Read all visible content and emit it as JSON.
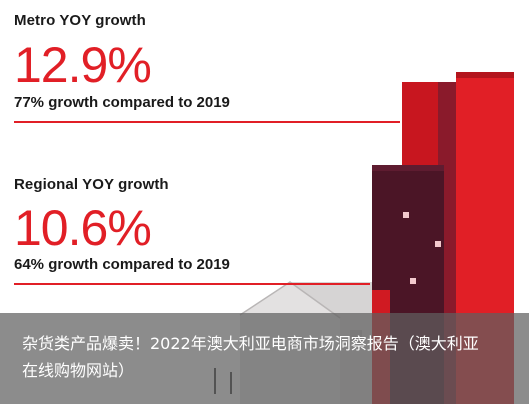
{
  "metro": {
    "label": "Metro YOY growth",
    "value": "12.9%",
    "description": "77% growth compared to 2019"
  },
  "regional": {
    "label": "Regional YOY growth",
    "value": "10.6%",
    "description": "64% growth compared to 2019"
  },
  "caption": "杂货类产品爆卖！2022年澳大利亚电商市场洞察报告（澳大利亚在线购物网站）",
  "colors": {
    "accent": "#e11f26",
    "dark_red": "#8a1a2b",
    "maroon": "#4b1526",
    "house_grey": "#cdcbcb"
  }
}
